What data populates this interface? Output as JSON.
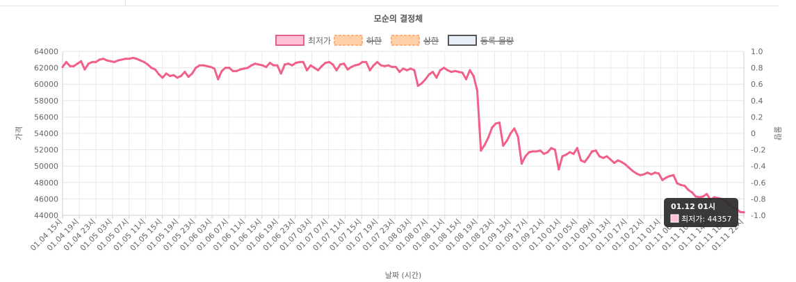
{
  "chart_data": {
    "type": "line",
    "title": "모순의 결정체",
    "xlabel": "날짜 (시간)",
    "ylabel": "가격",
    "y2label": "물량",
    "ylim": [
      44000,
      64000
    ],
    "y2lim": [
      -1.0,
      1.0
    ],
    "y_ticks": [
      "64000",
      "62000",
      "60000",
      "58000",
      "56000",
      "54000",
      "52000",
      "50000",
      "48000",
      "46000",
      "44000"
    ],
    "y2_ticks": [
      "1.0",
      "0.8",
      "0.6",
      "0.4",
      "0.2",
      "0",
      "-0.2",
      "-0.4",
      "-0.6",
      "-0.8",
      "-1.0"
    ],
    "x_ticks": [
      "01.04 15시",
      "01.04 19시",
      "01.04 23시",
      "01.05 03시",
      "01.05 07시",
      "01.05 11시",
      "01.05 15시",
      "01.05 19시",
      "01.05 23시",
      "01.06 03시",
      "01.06 07시",
      "01.06 11시",
      "01.06 15시",
      "01.06 19시",
      "01.06 23시",
      "01.07 03시",
      "01.07 07시",
      "01.07 11시",
      "01.07 15시",
      "01.07 19시",
      "01.07 23시",
      "01.08 03시",
      "01.08 07시",
      "01.08 11시",
      "01.08 15시",
      "01.08 19시",
      "01.08 23시",
      "01.09 13시",
      "01.09 17시",
      "01.09 21시",
      "01.10 01시",
      "01.10 05시",
      "01.10 09시",
      "01.10 13시",
      "01.10 17시",
      "01.10 21시",
      "01.11 01시",
      "01.11 06시",
      "01.11 10시",
      "01.11 14시",
      "01.11 18시",
      "01.11 22시"
    ],
    "legend": [
      {
        "label": "최저가",
        "fill": "#ffc0d8",
        "stroke": "#e0608a",
        "dashed": false,
        "hidden": false
      },
      {
        "label": "하한",
        "fill": "#ffd0a8",
        "stroke": "#ffb07a",
        "dashed": true,
        "hidden": true
      },
      {
        "label": "상한",
        "fill": "#ffd0a8",
        "stroke": "#ffb07a",
        "dashed": true,
        "hidden": true
      },
      {
        "label": "등록 물량",
        "fill": "#e8eef8",
        "stroke": "#555555",
        "dashed": false,
        "hidden": true
      }
    ],
    "series": [
      {
        "name": "최저가",
        "color": "#f06088",
        "values": [
          62100,
          62700,
          62200,
          62200,
          62500,
          62800,
          61800,
          62500,
          62700,
          62700,
          63000,
          63100,
          62900,
          62800,
          62700,
          62900,
          63000,
          63100,
          63100,
          63200,
          63100,
          62900,
          62700,
          62400,
          62000,
          61800,
          61200,
          60800,
          61300,
          61000,
          61100,
          60800,
          61000,
          61500,
          60900,
          61300,
          62000,
          62300,
          62300,
          62200,
          62100,
          61900,
          60600,
          61600,
          62000,
          62000,
          61600,
          61600,
          61800,
          61900,
          62000,
          62300,
          62500,
          62400,
          62300,
          62100,
          62600,
          62300,
          62300,
          61300,
          62400,
          62500,
          62300,
          62600,
          62700,
          62700,
          61700,
          62300,
          62000,
          61700,
          62200,
          62600,
          62700,
          62400,
          61700,
          62400,
          62500,
          61800,
          62100,
          62300,
          62400,
          62700,
          62700,
          61700,
          62300,
          62700,
          62300,
          62200,
          62300,
          62100,
          62100,
          61500,
          61900,
          61700,
          61900,
          61700,
          59800,
          60100,
          60600,
          61200,
          61500,
          60800,
          61700,
          62000,
          61700,
          61500,
          61600,
          61500,
          61400,
          60600,
          61700,
          61000,
          59200,
          51900,
          52600,
          53500,
          54700,
          55200,
          55300,
          52500,
          53100,
          54000,
          54600,
          53600,
          50300,
          51200,
          51700,
          51800,
          51800,
          51900,
          51500,
          51700,
          52200,
          52000,
          49600,
          51200,
          51400,
          51700,
          51500,
          52200,
          50700,
          50500,
          51100,
          51800,
          51900,
          51200,
          51000,
          51200,
          50800,
          50400,
          50700,
          50500,
          50200,
          49800,
          49400,
          49100,
          48900,
          49000,
          49200,
          49000,
          49200,
          49100,
          48300,
          48600,
          48800,
          48900,
          47900,
          47700,
          47600,
          47100,
          46800,
          46300,
          46200,
          46300,
          46600,
          45900,
          46200,
          46100,
          46000,
          45700,
          45300,
          45000,
          44800,
          44400,
          44357
        ]
      }
    ],
    "tooltip": {
      "title": "01.12 01시",
      "label": "최저가: 44357",
      "color": "#ffc0d8"
    }
  }
}
